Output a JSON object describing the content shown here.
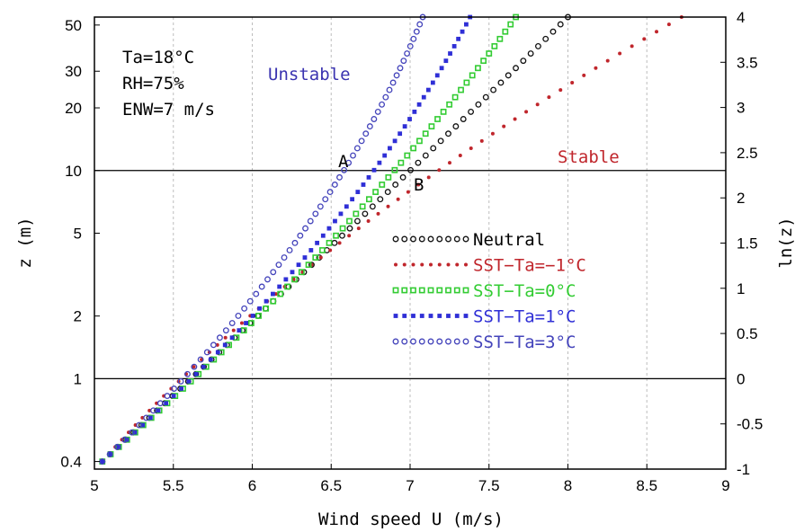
{
  "chart_data": {
    "type": "scatter",
    "title": "",
    "xlabel": "Wind speed U (m/s)",
    "ylabel": "z (m)",
    "ylabel_right": "ln(z)",
    "xlim": [
      5,
      9
    ],
    "ylim_ln": [
      -1,
      4
    ],
    "y_scale": "log",
    "x_ticks": [
      "5",
      "5.5",
      "6",
      "6.5",
      "7",
      "7.5",
      "8",
      "8.5",
      "9"
    ],
    "y_ticks_left": [
      {
        "label": "0.4",
        "value": 0.4
      },
      {
        "label": "1",
        "value": 1
      },
      {
        "label": "2",
        "value": 2
      },
      {
        "label": "5",
        "value": 5
      },
      {
        "label": "10",
        "value": 10
      },
      {
        "label": "20",
        "value": 20
      },
      {
        "label": "30",
        "value": 30
      },
      {
        "label": "50",
        "value": 50
      }
    ],
    "y_ticks_right": [
      "-1",
      "-0.5",
      "0",
      "0.5",
      "1",
      "1.5",
      "2",
      "2.5",
      "3",
      "3.5",
      "4"
    ],
    "grid": "vertical dashed",
    "reference_lines_z": [
      10,
      1
    ],
    "conditions": [
      "Ta=18°C",
      "RH=75%",
      "ENW=7 m/s"
    ],
    "annotations": [
      {
        "text": "Unstable",
        "color": "#3a33b0"
      },
      {
        "text": "Stable",
        "color": "#c0262c"
      },
      {
        "text": "A",
        "color": "#000000"
      },
      {
        "text": "B",
        "color": "#000000"
      }
    ],
    "legend_position": "center-right",
    "series": [
      {
        "name": "Neutral",
        "color": "#111111",
        "marker": "open-circle",
        "u_at_z0_4": 5.05,
        "u_at_z10": 7.0,
        "u_at_z54_6": 8.0
      },
      {
        "name": "SST−Ta=−1°C",
        "color": "#c0262c",
        "marker": "dot",
        "u_at_z0_4": 5.05,
        "u_at_z10": 7.18,
        "u_at_z54_6": 8.72
      },
      {
        "name": "SST−Ta=0°C",
        "color": "#33cc33",
        "marker": "open-square",
        "u_at_z0_4": 5.05,
        "u_at_z10": 6.9,
        "u_at_z54_6": 7.67
      },
      {
        "name": "SST−Ta=1°C",
        "color": "#2f2fd6",
        "marker": "filled-square",
        "u_at_z0_4": 5.05,
        "u_at_z10": 6.77,
        "u_at_z54_6": 7.38
      },
      {
        "name": "SST−Ta=3°C",
        "color": "#4444bb",
        "marker": "open-circle",
        "u_at_z0_4": 5.05,
        "u_at_z10": 6.58,
        "u_at_z54_6": 7.08
      }
    ]
  }
}
